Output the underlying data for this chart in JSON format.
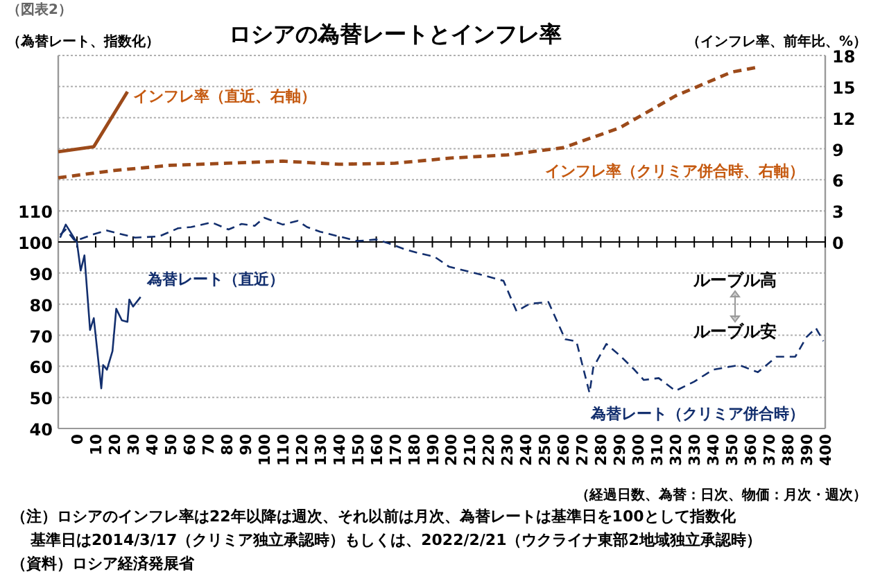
{
  "chart_data": {
    "type": "line",
    "title": "ロシアの為替レートとインフレ率",
    "ylabel": "（為替レート、指数化）",
    "y2label": "（インフレ率、前年比、%）",
    "xlabel": "（経過日数、為替：日次、物価：月次・週次）",
    "xlim": [
      -10,
      400
    ],
    "xticks": [
      0,
      10,
      20,
      30,
      40,
      50,
      60,
      70,
      80,
      90,
      100,
      110,
      120,
      130,
      140,
      150,
      160,
      170,
      180,
      190,
      200,
      210,
      220,
      230,
      240,
      250,
      260,
      270,
      280,
      290,
      300,
      310,
      320,
      330,
      340,
      350,
      360,
      370,
      380,
      390,
      400
    ],
    "ylim": [
      40,
      160
    ],
    "yticks": [
      40,
      50,
      60,
      70,
      80,
      90,
      100,
      110
    ],
    "y2lim": [
      -18,
      18
    ],
    "y2ticks": [
      0,
      3,
      6,
      9,
      12,
      15,
      18
    ],
    "grid": "y",
    "marker": "none",
    "series": [
      {
        "name": "インフレ率（直近、右軸）",
        "color": "#9c4a1a",
        "axis": "y2",
        "line_style": "solid",
        "x": [
          -10,
          9,
          27
        ],
        "values": [
          8.7,
          9.2,
          14.5
        ]
      },
      {
        "name": "インフレ率（クリミア併合時、右軸）",
        "color": "#9c4a1a",
        "axis": "y2",
        "line_style": "dashed",
        "x": [
          -10,
          20,
          50,
          80,
          110,
          140,
          170,
          200,
          230,
          260,
          290,
          320,
          350,
          365
        ],
        "values": [
          6.2,
          6.9,
          7.4,
          7.6,
          7.8,
          7.5,
          7.6,
          8.1,
          8.4,
          9.1,
          11.0,
          14.1,
          16.4,
          16.9
        ]
      },
      {
        "name": "為替レート（直近）",
        "color": "#132f6e",
        "line_style": "solid",
        "x": [
          -9,
          -6,
          0,
          2,
          4,
          7,
          9,
          13,
          14,
          16,
          19,
          21,
          24,
          27,
          28,
          30,
          34
        ],
        "values": [
          101.4,
          105.6,
          99.8,
          90.8,
          95.7,
          71.7,
          75.5,
          52.9,
          60.4,
          58.9,
          64.9,
          78.5,
          74.8,
          74.3,
          81.5,
          79.2,
          82.3
        ]
      },
      {
        "name": "為替レート（クリミア併合時）",
        "color": "#132f6e",
        "line_style": "dashed",
        "x": [
          -9,
          -6,
          -1,
          9,
          16,
          31,
          44,
          54,
          61,
          72,
          81,
          88,
          95,
          100,
          110,
          118,
          123,
          130,
          140,
          150,
          160,
          167,
          175,
          182,
          191,
          199,
          214,
          228,
          235,
          242,
          252,
          261,
          267,
          274,
          276,
          283,
          290,
          298,
          303,
          311,
          320,
          330,
          340,
          354,
          364,
          374,
          384,
          390,
          395,
          399
        ],
        "values": [
          102.3,
          104,
          100.3,
          102.5,
          103.7,
          101.4,
          101.8,
          104.4,
          104.8,
          106.3,
          104,
          105.8,
          105.2,
          107.8,
          105.6,
          106.8,
          104.8,
          103.3,
          101.8,
          100.3,
          100.8,
          99.5,
          97.7,
          96.5,
          95.3,
          92,
          89.8,
          87.5,
          77.7,
          80.1,
          80.7,
          68.7,
          68,
          51.4,
          59.6,
          67.2,
          63.6,
          58.9,
          55.6,
          56.2,
          52.1,
          55.1,
          58.9,
          60.4,
          58.1,
          63.1,
          63.1,
          69.4,
          72.3,
          68.1
        ]
      }
    ],
    "annotations": [
      "（図表2）",
      "ルーブル高",
      "ルーブル安",
      "（注）ロシアのインフレ率は22年以降は週次、それ以前は月次、為替レートは基準日を100として指数化",
      "基準日は2014/3/17（クリミア独立承認時）もしくは、2022/2/21（ウクライナ東部2地域独立承認時）",
      "（資料）ロシア経済発展省"
    ]
  }
}
